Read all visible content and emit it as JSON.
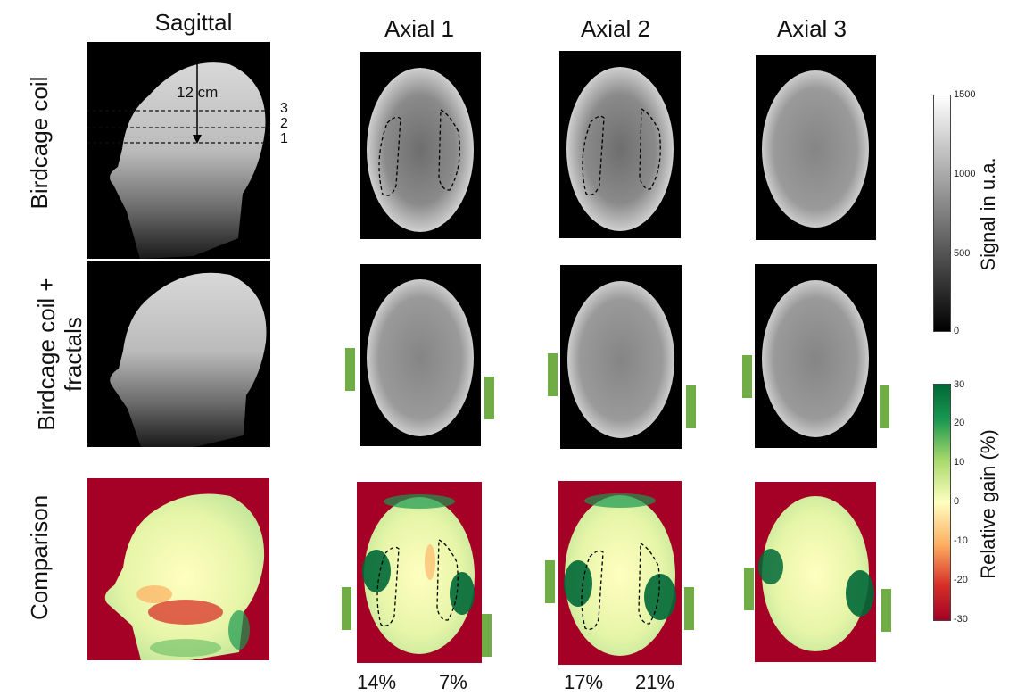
{
  "columns": {
    "sagittal": "Sagittal",
    "axial1": "Axial 1",
    "axial2": "Axial 2",
    "axial3": "Axial 3"
  },
  "rows": {
    "row1": "Birdcage coil",
    "row2_line1": "Birdcage coil +",
    "row2_line2": "fractals",
    "row3": "Comparison"
  },
  "annotations": {
    "distance": "12 cm",
    "slice3": "3",
    "slice2": "2",
    "slice1": "1"
  },
  "percentages": {
    "axial1_left": "14%",
    "axial1_right": "7%",
    "axial2_left": "17%",
    "axial2_right": "21%"
  },
  "colorbars": {
    "signal": {
      "label": "Signal in u.a.",
      "ticks": [
        "1500",
        "1000",
        "500",
        "0"
      ]
    },
    "gain": {
      "label": "Relative gain (%)",
      "ticks": [
        "30",
        "20",
        "10",
        "0",
        "-10",
        "-20",
        "-30"
      ]
    }
  },
  "colors": {
    "fractal_marker": "#70ad47",
    "comparison_background": "#a50026",
    "gain_max": "#006837",
    "gain_zero": "#ffffbf"
  }
}
